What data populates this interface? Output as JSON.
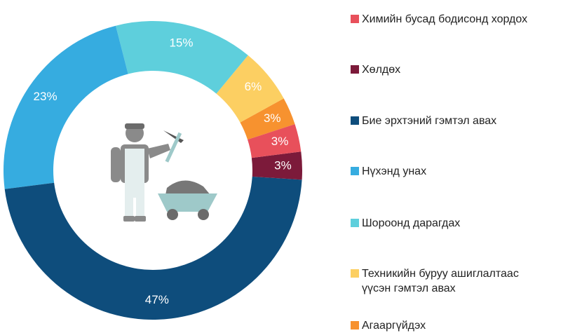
{
  "chart_data": {
    "type": "donut",
    "series": [
      {
        "name": "Химийн бусад бодисонд хордох",
        "color": "#e8505b"
      },
      {
        "name": "Хөлдөх",
        "color": "#7c1a3a"
      },
      {
        "name": "Бие эрхтэний гэмтэл авах",
        "color": "#0e4d7c"
      },
      {
        "name": "Нүхэнд унах",
        "color": "#36ace0"
      },
      {
        "name": "Шороонд дарагдах",
        "color": "#5ecfdc"
      },
      {
        "name": "Техникийн буруу ашиглалтаас\nүүсэн гэмтэл авах",
        "color": "#fccf62"
      },
      {
        "name": "Агааргүйдэх",
        "color": "#f7922f"
      }
    ],
    "values": [
      3,
      3,
      47,
      23,
      15,
      6,
      3
    ],
    "value_labels": [
      "3%",
      "3%",
      "47%",
      "23%",
      "15%",
      "6%",
      "3%"
    ]
  }
}
